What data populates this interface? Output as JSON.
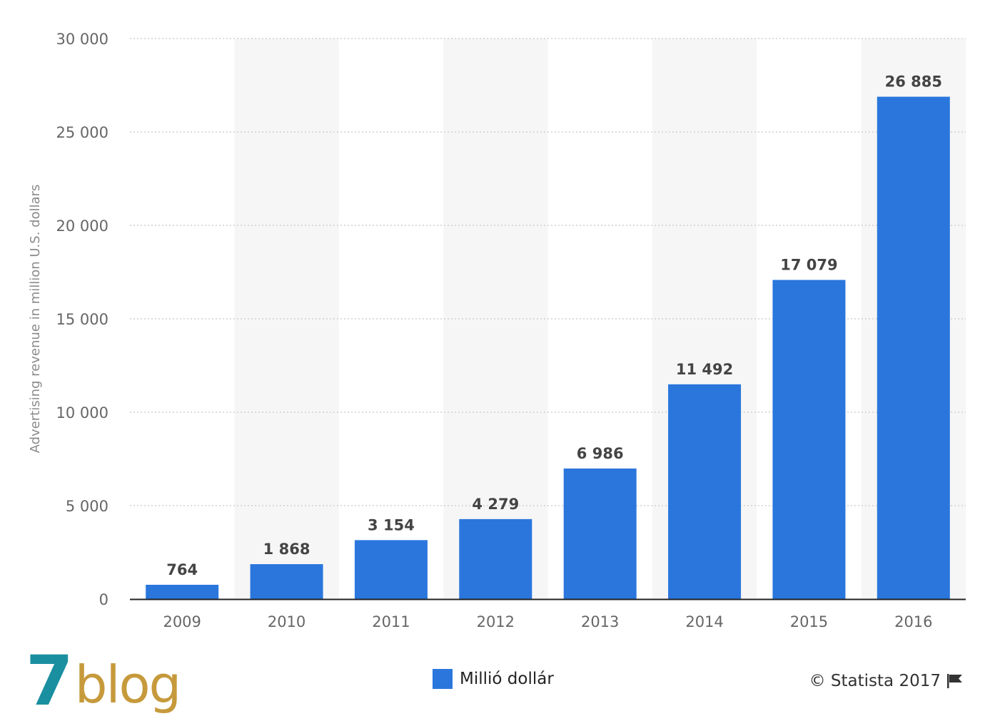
{
  "chart_data": {
    "type": "bar",
    "categories": [
      "2009",
      "2010",
      "2011",
      "2012",
      "2013",
      "2014",
      "2015",
      "2016"
    ],
    "values": [
      764,
      1868,
      3154,
      4279,
      6986,
      11492,
      17079,
      26885
    ],
    "value_labels": [
      "764",
      "1 868",
      "3 154",
      "4 279",
      "6 986",
      "11 492",
      "17 079",
      "26 885"
    ],
    "title": "",
    "xlabel": "",
    "ylabel": "Advertising revenue in million U.S. dollars",
    "ylim": [
      0,
      30000
    ],
    "yticks": [
      0,
      5000,
      10000,
      15000,
      20000,
      25000,
      30000
    ],
    "ytick_labels": [
      "0",
      "5 000",
      "10 000",
      "15 000",
      "20 000",
      "25 000",
      "30 000"
    ],
    "grid": true,
    "legend_position": "bottom-center",
    "series": [
      {
        "name": "Millió dollár",
        "color": "#2a76dd"
      }
    ]
  },
  "colors": {
    "bar": "#2a76dd",
    "band": "#f6f6f6",
    "grid": "#c8c8c8",
    "axis": "#222222",
    "logo_seven": "#1a8fa0",
    "logo_blog": "#c69a3c"
  },
  "legend": {
    "label": "Millió dollár"
  },
  "credit": {
    "text": "© Statista 2017",
    "icon": "flag-icon"
  },
  "logo": {
    "seven": "7",
    "blog": "blog"
  }
}
